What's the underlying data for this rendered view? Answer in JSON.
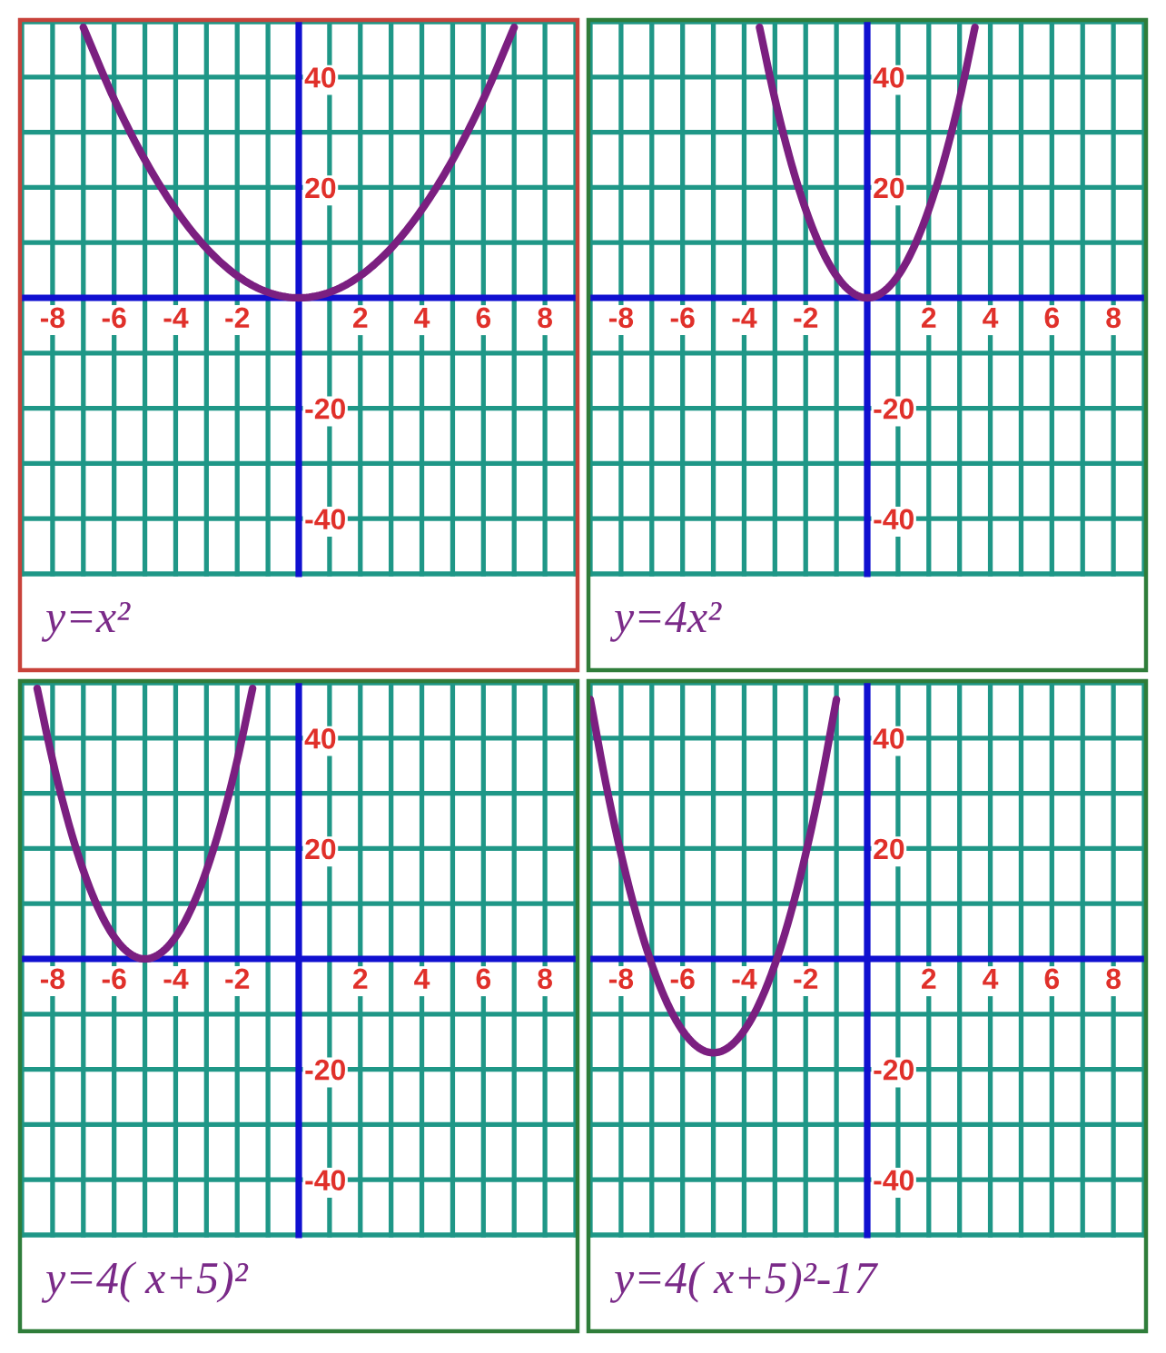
{
  "chart_data": [
    {
      "type": "line",
      "title": "y=x²",
      "xlim": [
        -9,
        9
      ],
      "ylim": [
        -50,
        50
      ],
      "grid": true,
      "xticks": [
        {
          "value": -9,
          "label": null
        },
        -8,
        {
          "value": -7,
          "label": null
        },
        -6,
        {
          "value": -5,
          "label": null
        },
        -4,
        {
          "value": -3,
          "label": null
        },
        -2,
        {
          "value": -1,
          "label": null
        },
        {
          "value": 0,
          "label": null
        },
        {
          "value": 1,
          "label": null
        },
        2,
        {
          "value": 3,
          "label": null
        },
        4,
        {
          "value": 5,
          "label": null
        },
        6,
        {
          "value": 7,
          "label": null
        },
        8,
        {
          "value": 9,
          "label": null
        }
      ],
      "yticks": [
        {
          "value": -50,
          "label": null
        },
        -40,
        {
          "value": -30,
          "label": null
        },
        -20,
        {
          "value": -10,
          "label": null
        },
        {
          "value": 0,
          "label": null
        },
        {
          "value": 10,
          "label": null
        },
        20,
        {
          "value": 30,
          "label": null
        },
        40,
        {
          "value": 50,
          "label": null
        }
      ],
      "series": [
        {
          "color": "#7b1f80",
          "x": [
            -7,
            -6,
            -5,
            -4,
            -3,
            -2,
            -1,
            0,
            1,
            2,
            3,
            4,
            5,
            6,
            7
          ],
          "values": [
            49,
            36,
            25,
            16,
            9,
            4,
            1,
            0,
            1,
            4,
            9,
            16,
            25,
            36,
            49
          ]
        }
      ]
    },
    {
      "type": "line",
      "title": "y=4x²",
      "xlim": [
        -9,
        9
      ],
      "ylim": [
        -50,
        50
      ],
      "grid": true,
      "xticks": [
        {
          "value": -9,
          "label": null
        },
        -8,
        {
          "value": -7,
          "label": null
        },
        -6,
        {
          "value": -5,
          "label": null
        },
        -4,
        {
          "value": -3,
          "label": null
        },
        -2,
        {
          "value": -1,
          "label": null
        },
        {
          "value": 0,
          "label": null
        },
        {
          "value": 1,
          "label": null
        },
        2,
        {
          "value": 3,
          "label": null
        },
        4,
        {
          "value": 5,
          "label": null
        },
        6,
        {
          "value": 7,
          "label": null
        },
        8,
        {
          "value": 9,
          "label": null
        }
      ],
      "yticks": [
        {
          "value": -50,
          "label": null
        },
        -40,
        {
          "value": -30,
          "label": null
        },
        -20,
        {
          "value": -10,
          "label": null
        },
        {
          "value": 0,
          "label": null
        },
        {
          "value": 10,
          "label": null
        },
        20,
        {
          "value": 30,
          "label": null
        },
        40,
        {
          "value": 50,
          "label": null
        }
      ],
      "series": [
        {
          "color": "#7b1f80",
          "x": [
            -3.5,
            -3,
            -2.5,
            -2,
            -1.5,
            -1,
            -0.5,
            0,
            0.5,
            1,
            1.5,
            2,
            2.5,
            3,
            3.5
          ],
          "values": [
            49,
            36,
            25,
            16,
            9,
            4,
            1,
            0,
            1,
            4,
            9,
            16,
            25,
            36,
            49
          ]
        }
      ]
    },
    {
      "type": "line",
      "title": "y=4( x+5)²",
      "xlim": [
        -9,
        9
      ],
      "ylim": [
        -50,
        50
      ],
      "grid": true,
      "xticks": [
        {
          "value": -9,
          "label": null
        },
        -8,
        {
          "value": -7,
          "label": null
        },
        -6,
        {
          "value": -5,
          "label": null
        },
        -4,
        {
          "value": -3,
          "label": null
        },
        -2,
        {
          "value": -1,
          "label": null
        },
        {
          "value": 0,
          "label": null
        },
        {
          "value": 1,
          "label": null
        },
        2,
        {
          "value": 3,
          "label": null
        },
        4,
        {
          "value": 5,
          "label": null
        },
        6,
        {
          "value": 7,
          "label": null
        },
        8,
        {
          "value": 9,
          "label": null
        }
      ],
      "yticks": [
        {
          "value": -50,
          "label": null
        },
        -40,
        {
          "value": -30,
          "label": null
        },
        -20,
        {
          "value": -10,
          "label": null
        },
        {
          "value": 0,
          "label": null
        },
        {
          "value": 10,
          "label": null
        },
        20,
        {
          "value": 30,
          "label": null
        },
        40,
        {
          "value": 50,
          "label": null
        }
      ],
      "series": [
        {
          "color": "#7b1f80",
          "x": [
            -8.5,
            -8,
            -7.5,
            -7,
            -6.5,
            -6,
            -5.5,
            -5,
            -4.5,
            -4,
            -3.5,
            -3,
            -2.5,
            -2,
            -1.5
          ],
          "values": [
            49,
            36,
            25,
            16,
            9,
            4,
            1,
            0,
            1,
            4,
            9,
            16,
            25,
            36,
            49
          ]
        }
      ]
    },
    {
      "type": "line",
      "title": "y=4( x+5)²-17",
      "xlim": [
        -9,
        9
      ],
      "ylim": [
        -50,
        50
      ],
      "grid": true,
      "xticks": [
        {
          "value": -9,
          "label": null
        },
        -8,
        {
          "value": -7,
          "label": null
        },
        -6,
        {
          "value": -5,
          "label": null
        },
        -4,
        {
          "value": -3,
          "label": null
        },
        -2,
        {
          "value": -1,
          "label": null
        },
        {
          "value": 0,
          "label": null
        },
        {
          "value": 1,
          "label": null
        },
        2,
        {
          "value": 3,
          "label": null
        },
        4,
        {
          "value": 5,
          "label": null
        },
        6,
        {
          "value": 7,
          "label": null
        },
        8,
        {
          "value": 9,
          "label": null
        }
      ],
      "yticks": [
        {
          "value": -50,
          "label": null
        },
        -40,
        {
          "value": -30,
          "label": null
        },
        -20,
        {
          "value": -10,
          "label": null
        },
        {
          "value": 0,
          "label": null
        },
        {
          "value": 10,
          "label": null
        },
        20,
        {
          "value": 30,
          "label": null
        },
        40,
        {
          "value": 50,
          "label": null
        }
      ],
      "series": [
        {
          "color": "#7b1f80",
          "x": [
            -9,
            -8.5,
            -8,
            -7.5,
            -7,
            -6.5,
            -6,
            -5.5,
            -5,
            -4.5,
            -4,
            -3.5,
            -3,
            -2.5,
            -2,
            -1.5,
            -1
          ],
          "values": [
            47,
            32,
            19,
            8,
            -1,
            -8,
            -13,
            -16,
            -17,
            -16,
            -13,
            -8,
            -1,
            8,
            19,
            32,
            47
          ]
        }
      ]
    }
  ]
}
